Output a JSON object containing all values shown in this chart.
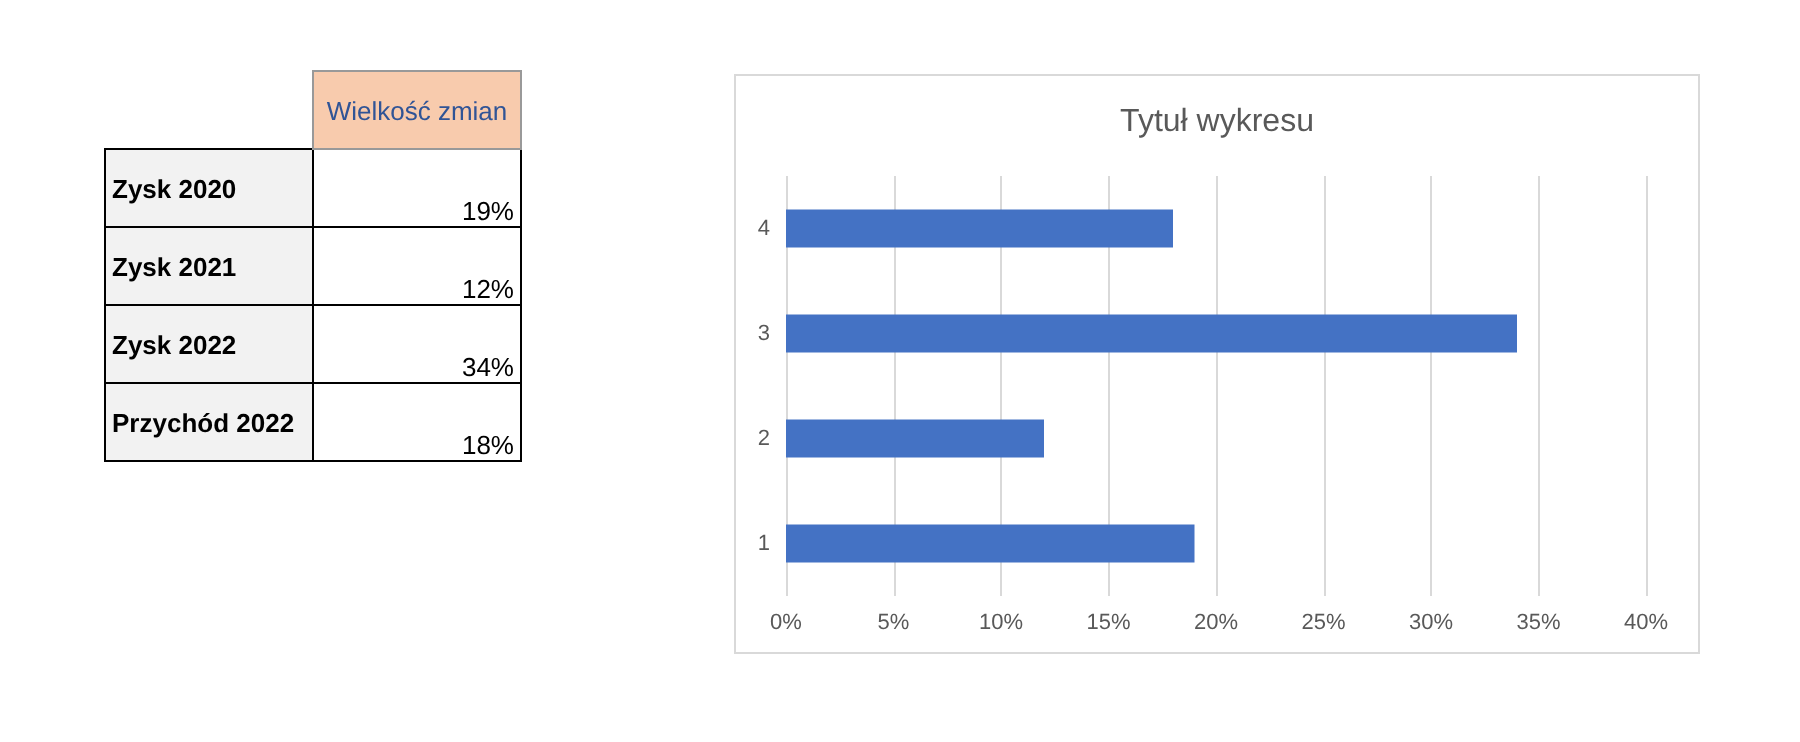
{
  "chart_data": {
    "type": "bar",
    "orientation": "horizontal",
    "title": "Tytuł wykresu",
    "categories": [
      "4",
      "3",
      "2",
      "1"
    ],
    "values": [
      18,
      34,
      12,
      19
    ],
    "color": "#4472c4",
    "xlim": [
      0,
      40
    ],
    "xticks": [
      {
        "value": 0,
        "label": "0%"
      },
      {
        "value": 5,
        "label": "5%"
      },
      {
        "value": 10,
        "label": "10%"
      },
      {
        "value": 15,
        "label": "15%"
      },
      {
        "value": 20,
        "label": "20%"
      },
      {
        "value": 25,
        "label": "25%"
      },
      {
        "value": 30,
        "label": "30%"
      },
      {
        "value": 35,
        "label": "35%"
      },
      {
        "value": 40,
        "label": "40%"
      }
    ],
    "annotations": [
      "Wielkość zmian",
      "Zysk 2020",
      "19%",
      "Zysk 2021",
      "12%",
      "Zysk 2022",
      "34%",
      "Przychód 2022",
      "18%"
    ],
    "grid": "x"
  }
}
